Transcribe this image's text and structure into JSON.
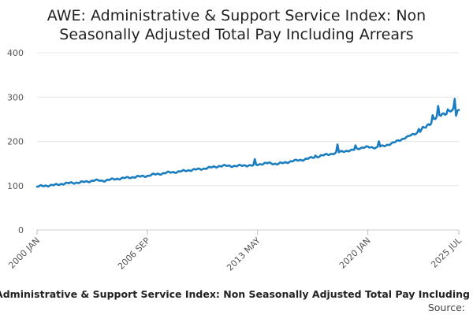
{
  "chart_data": {
    "type": "line",
    "title": [
      "AWE: Administrative & Support Service Index: Non",
      "Seasonally Adjusted Total Pay Including Arrears"
    ],
    "xlabel": "",
    "ylabel": "",
    "ylim": [
      0,
      400
    ],
    "yticks": [
      0,
      100,
      200,
      300,
      400
    ],
    "xticks": [
      "2000 JAN",
      "2006 SEP",
      "2013 MAY",
      "2020 JAN",
      "2025 JUL"
    ],
    "x_range": [
      "2000 JAN",
      "2025 JUL"
    ],
    "grid": "horizontal",
    "legend_placement": "bottom",
    "series": [
      {
        "name": "Administrative & Support Service Index: Non Seasonally Adjusted Total Pay Including",
        "color": "#1a7dbf",
        "points": [
          [
            "2000 JAN",
            98
          ],
          [
            "2000 JUL",
            100
          ],
          [
            "2001 JAN",
            101
          ],
          [
            "2001 JUL",
            104
          ],
          [
            "2002 JAN",
            106
          ],
          [
            "2002 JUL",
            107
          ],
          [
            "2003 JAN",
            109
          ],
          [
            "2003 JUL",
            112
          ],
          [
            "2004 JAN",
            111
          ],
          [
            "2004 JUL",
            114
          ],
          [
            "2005 JAN",
            116
          ],
          [
            "2005 JUL",
            118
          ],
          [
            "2006 JAN",
            120
          ],
          [
            "2006 SEP",
            122
          ],
          [
            "2007 JAN",
            125
          ],
          [
            "2007 JUL",
            127
          ],
          [
            "2008 JAN",
            130
          ],
          [
            "2008 JUL",
            131
          ],
          [
            "2009 JAN",
            134
          ],
          [
            "2009 JUL",
            136
          ],
          [
            "2010 JAN",
            138
          ],
          [
            "2010 JUL",
            141
          ],
          [
            "2011 JAN",
            144
          ],
          [
            "2011 JUL",
            145
          ],
          [
            "2012 JAN",
            144
          ],
          [
            "2012 JUL",
            146
          ],
          [
            "2013 JAN",
            145
          ],
          [
            "2013 MAY",
            148
          ],
          [
            "2014 JAN",
            151
          ],
          [
            "2014 JUL",
            149
          ],
          [
            "2015 JAN",
            152
          ],
          [
            "2015 JUL",
            156
          ],
          [
            "2016 JAN",
            158
          ],
          [
            "2016 JUL",
            162
          ],
          [
            "2017 JAN",
            166
          ],
          [
            "2017 JUL",
            170
          ],
          [
            "2018 JAN",
            173
          ],
          [
            "2018 JUL",
            178
          ],
          [
            "2019 JAN",
            179
          ],
          [
            "2019 JUL",
            185
          ],
          [
            "2020 JAN",
            187
          ],
          [
            "2020 JUL",
            186
          ],
          [
            "2021 JAN",
            190
          ],
          [
            "2021 JUL",
            196
          ],
          [
            "2022 JAN",
            204
          ],
          [
            "2022 JUL",
            212
          ],
          [
            "2023 JAN",
            220
          ],
          [
            "2023 JUL",
            232
          ],
          [
            "2024 JAN",
            250
          ],
          [
            "2024 JUL",
            262
          ],
          [
            "2025 JAN",
            268
          ],
          [
            "2025 JUL",
            271
          ]
        ],
        "spikes": [
          [
            "2013 MAR",
            160
          ],
          [
            "2016 NOV",
            168
          ],
          [
            "2018 MAR",
            193
          ],
          [
            "2019 APR",
            191
          ],
          [
            "2020 SEP",
            200
          ],
          [
            "2022 JUN",
            212
          ],
          [
            "2023 FEB",
            228
          ],
          [
            "2023 DEC",
            259
          ],
          [
            "2024 APR",
            280
          ],
          [
            "2024 NOV",
            272
          ],
          [
            "2025 APR",
            296
          ],
          [
            "2025 MAY",
            258
          ]
        ]
      }
    ]
  },
  "footer": {
    "legend_label": "Administrative & Support Service Index: Non Seasonally Adjusted Total Pay Including",
    "source_label": "Source:"
  }
}
